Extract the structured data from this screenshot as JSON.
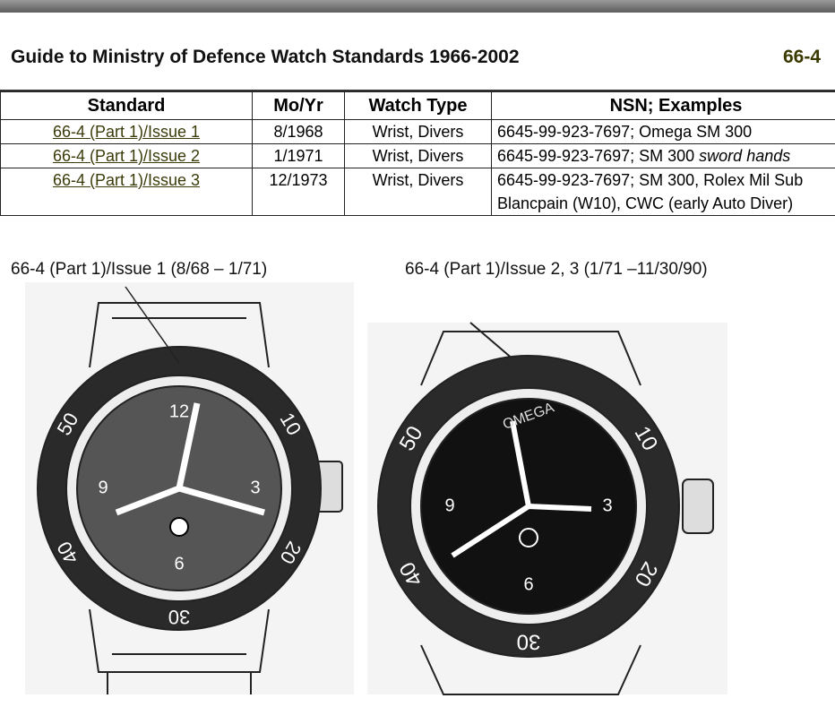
{
  "header": {
    "title": "Guide to Ministry of Defence Watch Standards 1966-2002",
    "code": "66-4"
  },
  "table": {
    "columns": [
      "Standard",
      "Mo/Yr",
      "Watch Type",
      "NSN; Examples"
    ],
    "rows": [
      {
        "standard": "66-4 (Part 1)/Issue 1",
        "date": "8/1968",
        "type": "Wrist, Divers",
        "nsn": [
          "6645-99-923-7697; Omega SM 300"
        ]
      },
      {
        "standard": "66-4 (Part 1)/Issue 2",
        "date": "1/1971",
        "type": "Wrist, Divers",
        "nsn": [
          "6645-99-923-7697; SM 300 ",
          "sword hands"
        ]
      },
      {
        "standard": "66-4 (Part 1)/Issue 3",
        "date": "12/1973",
        "type": "Wrist, Divers",
        "nsn": [
          "6645-99-923-7697; SM 300, Rolex Mil Sub",
          "Blancpain (W10), CWC (early Auto Diver)"
        ]
      }
    ]
  },
  "figures": [
    {
      "caption": "66-4 (Part 1)/Issue 1 (8/68 – 1/71)",
      "dial": [
        "12",
        "3",
        "6",
        "9"
      ],
      "bezel": [
        "10",
        "20",
        "30",
        "40",
        "50"
      ]
    },
    {
      "caption": "66-4 (Part 1)/Issue 2, 3 (1/71 –11/30/90)",
      "dial": [
        "3",
        "6",
        "9"
      ],
      "bezel": [
        "10",
        "20",
        "30",
        "40",
        "50"
      ],
      "brand": "OMEGA"
    }
  ]
}
